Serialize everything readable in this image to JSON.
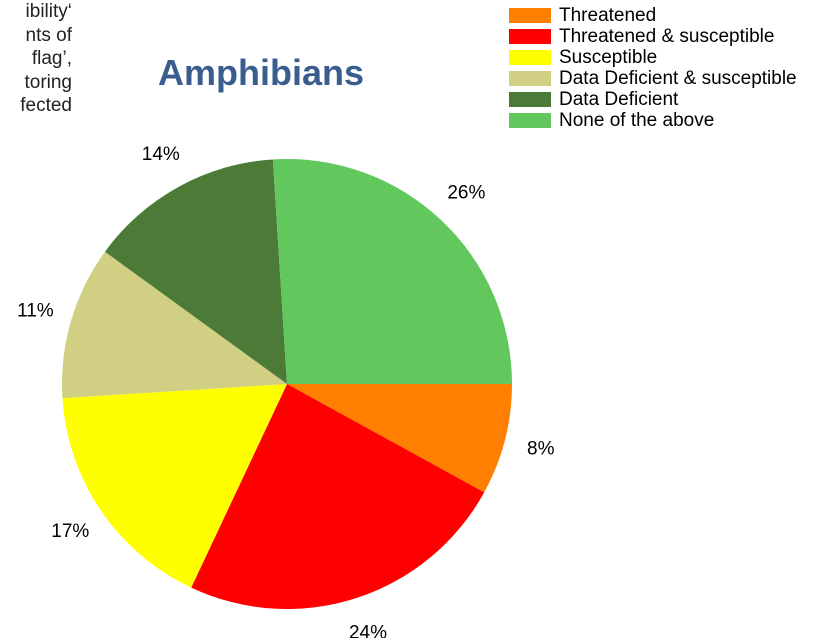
{
  "background_text": {
    "lines": [
      "ibility‘",
      "nts of",
      "flag’,",
      "toring",
      "fected"
    ]
  },
  "chart_data": {
    "type": "pie",
    "title": "Amphibians",
    "categories": [
      "Threatened",
      "Threatened & susceptible",
      "Susceptible",
      "Data Deficient & susceptible",
      "Data Deficient",
      "None of the above"
    ],
    "values": [
      8,
      24,
      17,
      11,
      14,
      26
    ],
    "value_labels": [
      "8%",
      "24%",
      "17%",
      "11%",
      "14%",
      "26%"
    ],
    "colors": [
      "#ff8000",
      "#ff0000",
      "#ffff00",
      "#d0cf83",
      "#4b7b36",
      "#62c75d"
    ],
    "legend_position": "top-right"
  }
}
